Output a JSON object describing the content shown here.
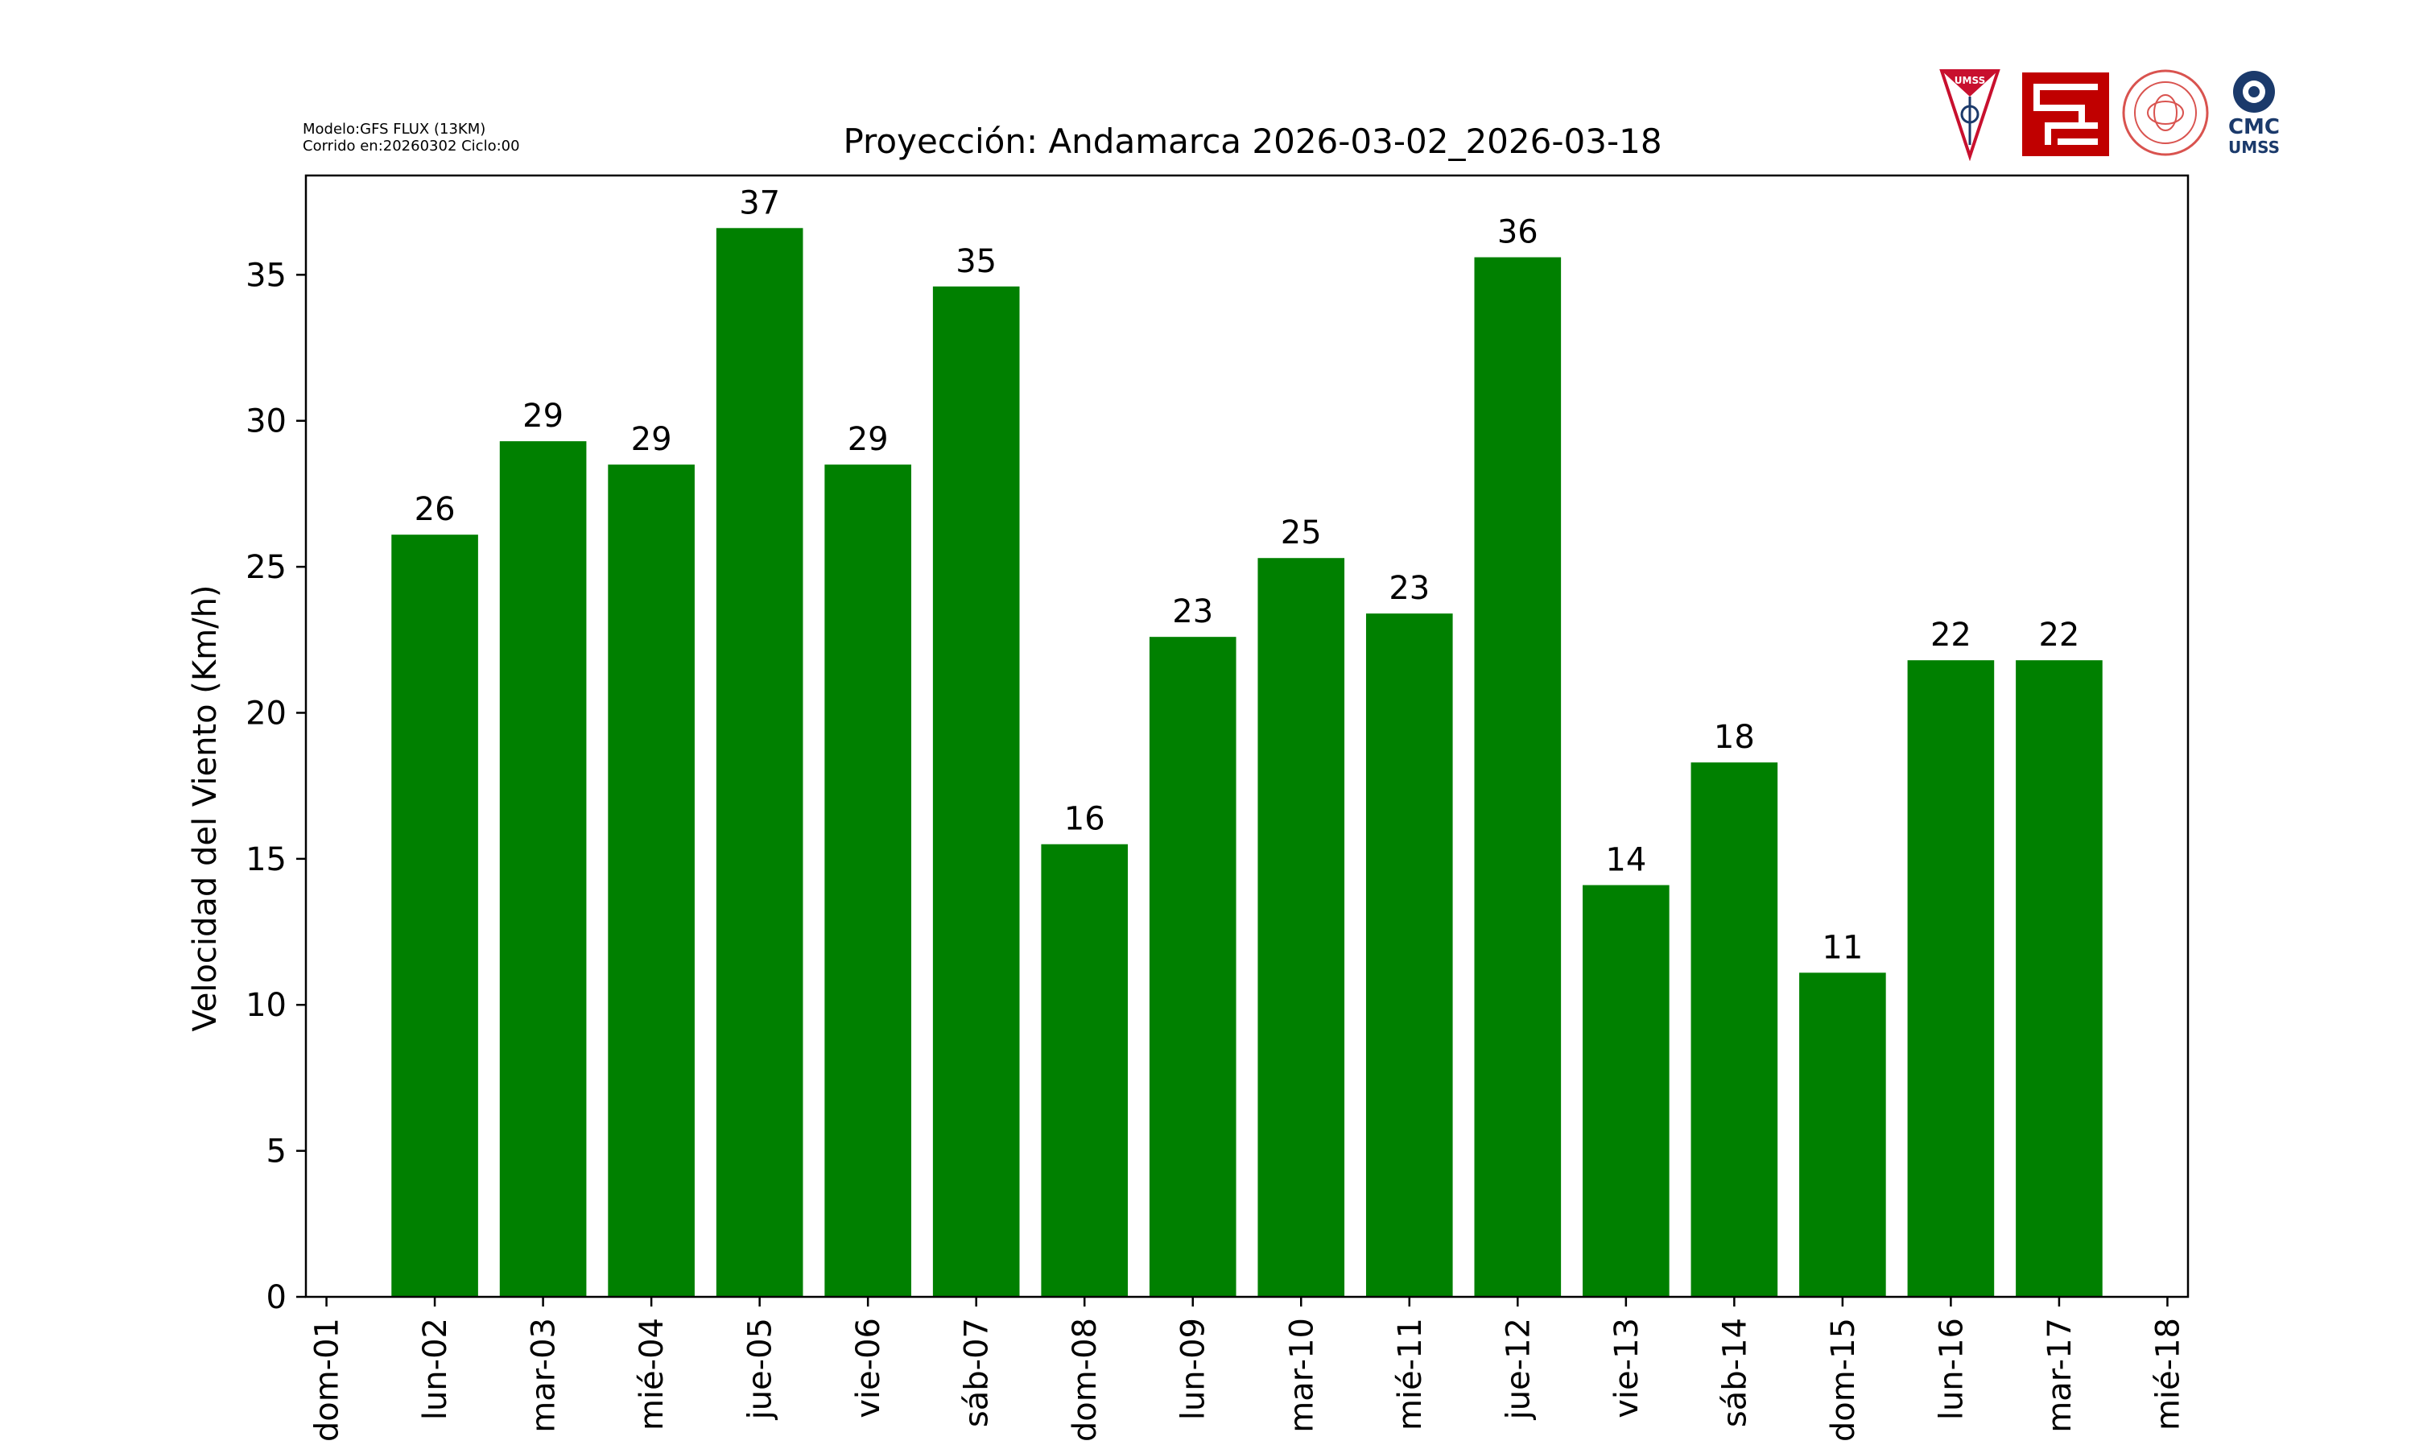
{
  "header": {
    "model": "Modelo:GFS FLUX (13KM)",
    "run": "Corrido en:20260302 Ciclo:00"
  },
  "logos": {
    "umss_label": "UMSS",
    "cmc_label": "CMC",
    "cmc_sub": "UMSS"
  },
  "colors": {
    "bar": "#008000",
    "axis": "#000000",
    "umss_red": "#c8102e",
    "fcyt_red": "#c00000",
    "cmc_blue": "#1b3a6b"
  },
  "chart_data": {
    "type": "bar",
    "title": "Proyección: Andamarca  2026-03-02_2026-03-18",
    "xlabel": "",
    "ylabel": "Velocidad del Viento (Km/h)",
    "ylim": [
      0,
      38.4
    ],
    "yticks": [
      0,
      5,
      10,
      15,
      20,
      25,
      30,
      35
    ],
    "tick_labels": [
      "dom-01",
      "lun-02",
      "mar-03",
      "mié-04",
      "jue-05",
      "vie-06",
      "sáb-07",
      "dom-08",
      "lun-09",
      "mar-10",
      "mié-11",
      "jue-12",
      "vie-13",
      "sáb-14",
      "dom-15",
      "lun-16",
      "mar-17",
      "mié-18"
    ],
    "categories": [
      "lun-02",
      "mar-03",
      "mié-04",
      "jue-05",
      "vie-06",
      "sáb-07",
      "dom-08",
      "lun-09",
      "mar-10",
      "mié-11",
      "jue-12",
      "vie-13",
      "sáb-14",
      "dom-15",
      "lun-16",
      "mar-17"
    ],
    "values": [
      26.1,
      29.3,
      28.5,
      36.6,
      28.5,
      34.6,
      15.5,
      22.6,
      25.3,
      23.4,
      35.6,
      14.1,
      18.3,
      11.1,
      21.8,
      21.8
    ],
    "labels": [
      "26",
      "29",
      "29",
      "37",
      "29",
      "35",
      "16",
      "23",
      "25",
      "23",
      "36",
      "14",
      "18",
      "11",
      "22",
      "22"
    ],
    "grid": false,
    "legend": "none"
  }
}
